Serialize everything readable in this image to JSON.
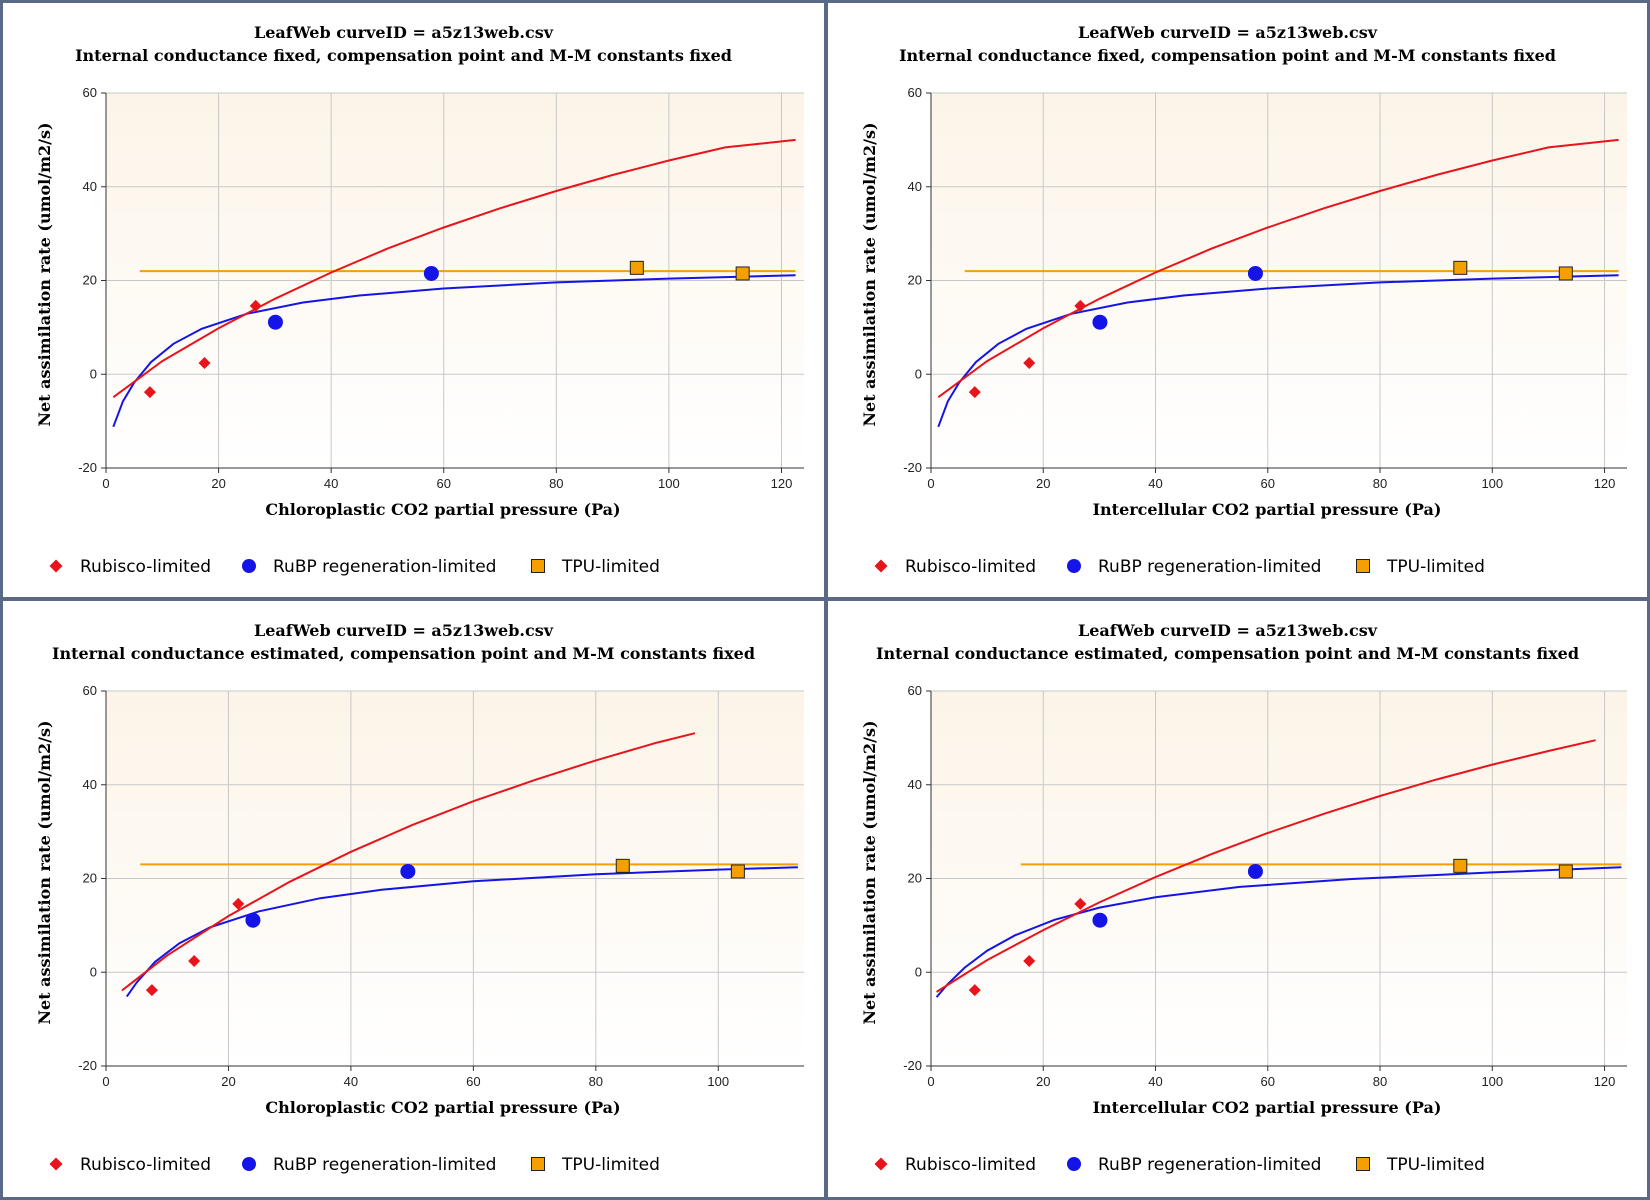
{
  "colors": {
    "rubisco": "#e8141c",
    "rubp": "#1414e8",
    "tpu": "#f5a000",
    "plot_bg_top": "#fcf4e8",
    "plot_bg_bottom": "#ffffff",
    "grid": "#c8c8c8"
  },
  "chart_data": [
    {
      "type": "scatter",
      "title": "LeafWeb curveID = a5z13web.csv",
      "subtitle": "Internal conductance fixed, compensation point and M-M constants fixed",
      "xlabel": "Chloroplastic CO2 partial pressure (Pa)",
      "ylabel": "Net assimilation rate (umol/m2/s)",
      "xlim": [
        0,
        124
      ],
      "ylim": [
        -20,
        60
      ],
      "xticks": [
        "0",
        "20",
        "40",
        "60",
        "80",
        "100",
        "120"
      ],
      "yticks": [
        "-20",
        "0",
        "20",
        "40",
        "60"
      ],
      "grid": true,
      "legend_position": "bottom",
      "series": [
        {
          "name": "Rubisco-limited",
          "marker": "diamond",
          "color": "#e8141c",
          "points": [
            [
              7.8,
              -3.8
            ],
            [
              17.5,
              2.4
            ],
            [
              26.6,
              14.6
            ]
          ],
          "curve": [
            [
              1.3,
              -4.9
            ],
            [
              10,
              2.8
            ],
            [
              20,
              9.8
            ],
            [
              30,
              16.1
            ],
            [
              40,
              21.7
            ],
            [
              50,
              26.8
            ],
            [
              60,
              31.3
            ],
            [
              70,
              35.4
            ],
            [
              80,
              39.1
            ],
            [
              90,
              42.5
            ],
            [
              100,
              45.6
            ],
            [
              110,
              48.4
            ],
            [
              122.5,
              50.0
            ]
          ]
        },
        {
          "name": "RuBP regeneration-limited",
          "marker": "circle",
          "color": "#1414e8",
          "points": [
            [
              30.1,
              11.1
            ],
            [
              57.8,
              21.5
            ]
          ],
          "curve": [
            [
              1.3,
              -11.2
            ],
            [
              3,
              -5.8
            ],
            [
              5,
              -1.8
            ],
            [
              8,
              2.6
            ],
            [
              12,
              6.5
            ],
            [
              17,
              9.7
            ],
            [
              25,
              12.9
            ],
            [
              35,
              15.3
            ],
            [
              45,
              16.8
            ],
            [
              60,
              18.3
            ],
            [
              80,
              19.6
            ],
            [
              100,
              20.4
            ],
            [
              122.5,
              21.1
            ]
          ]
        },
        {
          "name": "TPU-limited",
          "marker": "square",
          "color": "#f5a000",
          "points": [
            [
              94.3,
              22.7
            ],
            [
              113.1,
              21.5
            ]
          ],
          "curve": [
            [
              6,
              22
            ],
            [
              122.5,
              22
            ]
          ]
        }
      ]
    },
    {
      "type": "scatter",
      "title": "LeafWeb curveID = a5z13web.csv",
      "subtitle": "Internal conductance fixed, compensation point and M-M constants fixed",
      "xlabel": "Intercellular CO2 partial pressure (Pa)",
      "ylabel": "Net assimilation rate (umol/m2/s)",
      "xlim": [
        0,
        124
      ],
      "ylim": [
        -20,
        60
      ],
      "xticks": [
        "0",
        "20",
        "40",
        "60",
        "80",
        "100",
        "120"
      ],
      "yticks": [
        "-20",
        "0",
        "20",
        "40",
        "60"
      ],
      "grid": true,
      "legend_position": "bottom",
      "series": [
        {
          "name": "Rubisco-limited",
          "marker": "diamond",
          "color": "#e8141c",
          "points": [
            [
              7.8,
              -3.8
            ],
            [
              17.5,
              2.4
            ],
            [
              26.6,
              14.6
            ]
          ],
          "curve": [
            [
              1.3,
              -4.9
            ],
            [
              10,
              2.8
            ],
            [
              20,
              9.8
            ],
            [
              30,
              16.1
            ],
            [
              40,
              21.7
            ],
            [
              50,
              26.8
            ],
            [
              60,
              31.3
            ],
            [
              70,
              35.4
            ],
            [
              80,
              39.1
            ],
            [
              90,
              42.5
            ],
            [
              100,
              45.6
            ],
            [
              110,
              48.4
            ],
            [
              122.5,
              50.0
            ]
          ]
        },
        {
          "name": "RuBP regeneration-limited",
          "marker": "circle",
          "color": "#1414e8",
          "points": [
            [
              30.1,
              11.1
            ],
            [
              57.8,
              21.5
            ]
          ],
          "curve": [
            [
              1.3,
              -11.2
            ],
            [
              3,
              -5.8
            ],
            [
              5,
              -1.8
            ],
            [
              8,
              2.6
            ],
            [
              12,
              6.5
            ],
            [
              17,
              9.7
            ],
            [
              25,
              12.9
            ],
            [
              35,
              15.3
            ],
            [
              45,
              16.8
            ],
            [
              60,
              18.3
            ],
            [
              80,
              19.6
            ],
            [
              100,
              20.4
            ],
            [
              122.5,
              21.1
            ]
          ]
        },
        {
          "name": "TPU-limited",
          "marker": "square",
          "color": "#f5a000",
          "points": [
            [
              94.3,
              22.7
            ],
            [
              113.1,
              21.5
            ]
          ],
          "curve": [
            [
              6,
              22
            ],
            [
              122.5,
              22
            ]
          ]
        }
      ]
    },
    {
      "type": "scatter",
      "title": "LeafWeb curveID = a5z13web.csv",
      "subtitle": "Internal conductance estimated, compensation point and M-M constants fixed",
      "xlabel": "Chloroplastic CO2 partial pressure (Pa)",
      "ylabel": "Net assimilation rate (umol/m2/s)",
      "xlim": [
        0,
        114
      ],
      "ylim": [
        -20,
        60
      ],
      "xticks": [
        "0",
        "20",
        "40",
        "60",
        "80",
        "100"
      ],
      "yticks": [
        "-20",
        "0",
        "20",
        "40",
        "60"
      ],
      "grid": true,
      "legend_position": "bottom",
      "series": [
        {
          "name": "Rubisco-limited",
          "marker": "diamond",
          "color": "#e8141c",
          "points": [
            [
              7.5,
              -3.8
            ],
            [
              14.4,
              2.4
            ],
            [
              21.6,
              14.6
            ]
          ],
          "curve": [
            [
              2.6,
              -3.9
            ],
            [
              10,
              3.6
            ],
            [
              20,
              12.0
            ],
            [
              30,
              19.3
            ],
            [
              40,
              25.7
            ],
            [
              50,
              31.4
            ],
            [
              60,
              36.5
            ],
            [
              70,
              41.0
            ],
            [
              80,
              45.2
            ],
            [
              90,
              49.0
            ],
            [
              96.2,
              51.0
            ]
          ]
        },
        {
          "name": "RuBP regeneration-limited",
          "marker": "circle",
          "color": "#1414e8",
          "points": [
            [
              24.0,
              11.1
            ],
            [
              49.3,
              21.5
            ]
          ],
          "curve": [
            [
              3.4,
              -5.2
            ],
            [
              5,
              -2.2
            ],
            [
              8,
              2.2
            ],
            [
              12,
              6.2
            ],
            [
              17,
              9.6
            ],
            [
              25,
              13.0
            ],
            [
              35,
              15.8
            ],
            [
              45,
              17.6
            ],
            [
              60,
              19.4
            ],
            [
              80,
              20.9
            ],
            [
              100,
              21.9
            ],
            [
              113,
              22.4
            ]
          ]
        },
        {
          "name": "TPU-limited",
          "marker": "square",
          "color": "#f5a000",
          "points": [
            [
              84.4,
              22.7
            ],
            [
              103.2,
              21.5
            ]
          ],
          "curve": [
            [
              5.6,
              23
            ],
            [
              113,
              23
            ]
          ]
        }
      ]
    },
    {
      "type": "scatter",
      "title": "LeafWeb curveID = a5z13web.csv",
      "subtitle": "Internal conductance estimated, compensation point and M-M constants fixed",
      "xlabel": "Intercellular CO2 partial pressure (Pa)",
      "ylabel": "Net assimilation rate (umol/m2/s)",
      "xlim": [
        0,
        124
      ],
      "ylim": [
        -20,
        60
      ],
      "xticks": [
        "0",
        "20",
        "40",
        "60",
        "80",
        "100",
        "120"
      ],
      "yticks": [
        "-20",
        "0",
        "20",
        "40",
        "60"
      ],
      "grid": true,
      "legend_position": "bottom",
      "series": [
        {
          "name": "Rubisco-limited",
          "marker": "diamond",
          "color": "#e8141c",
          "points": [
            [
              7.8,
              -3.8
            ],
            [
              17.5,
              2.4
            ],
            [
              26.6,
              14.6
            ]
          ],
          "curve": [
            [
              1.0,
              -4.2
            ],
            [
              10,
              2.6
            ],
            [
              20,
              9.0
            ],
            [
              30,
              14.9
            ],
            [
              40,
              20.3
            ],
            [
              50,
              25.2
            ],
            [
              60,
              29.7
            ],
            [
              70,
              33.8
            ],
            [
              80,
              37.6
            ],
            [
              90,
              41.1
            ],
            [
              100,
              44.3
            ],
            [
              110,
              47.2
            ],
            [
              118.4,
              49.5
            ]
          ]
        },
        {
          "name": "RuBP regeneration-limited",
          "marker": "circle",
          "color": "#1414e8",
          "points": [
            [
              30.1,
              11.1
            ],
            [
              57.8,
              21.5
            ]
          ],
          "curve": [
            [
              1.0,
              -5.3
            ],
            [
              3,
              -2.5
            ],
            [
              6,
              1.0
            ],
            [
              10,
              4.6
            ],
            [
              15,
              7.9
            ],
            [
              22,
              11.2
            ],
            [
              30,
              13.8
            ],
            [
              40,
              16.0
            ],
            [
              55,
              18.2
            ],
            [
              75,
              19.9
            ],
            [
              100,
              21.3
            ],
            [
              123,
              22.4
            ]
          ]
        },
        {
          "name": "TPU-limited",
          "marker": "square",
          "color": "#f5a000",
          "points": [
            [
              94.3,
              22.7
            ],
            [
              113.1,
              21.5
            ]
          ],
          "curve": [
            [
              16,
              23
            ],
            [
              123,
              23
            ]
          ]
        }
      ]
    }
  ]
}
